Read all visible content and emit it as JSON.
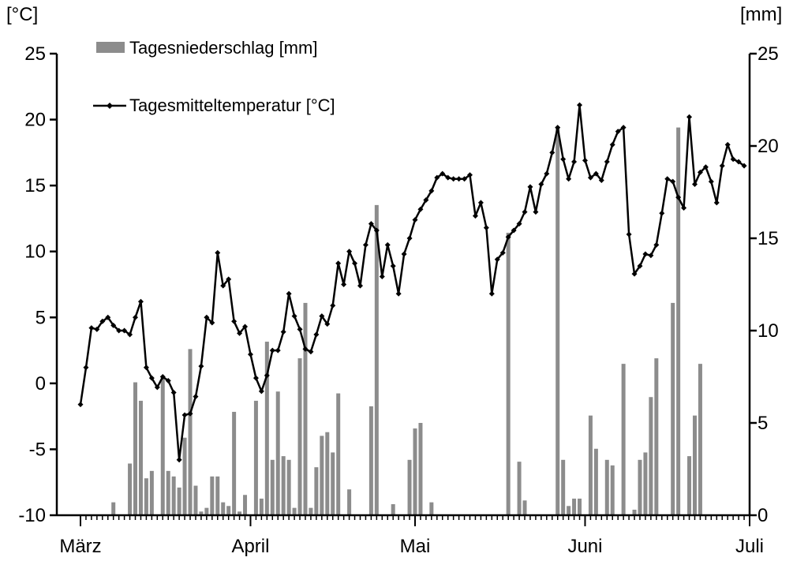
{
  "chart_data": {
    "type": "bar",
    "title": "",
    "left_unit": "[°C]",
    "right_unit": "[mm]",
    "left_ylim": [
      -10,
      25
    ],
    "left_yticks": [
      "25",
      "20",
      "15",
      "10",
      "5",
      "0",
      "-5",
      "-10"
    ],
    "right_ylim": [
      0,
      25
    ],
    "right_yticks": [
      "25",
      "20",
      "15",
      "10",
      "5",
      "0"
    ],
    "x_labels": [
      "März",
      "April",
      "Mai",
      "Juni",
      "Juli"
    ],
    "x_range_days": [
      0,
      122
    ],
    "grid": false,
    "legend_position": "top-left",
    "colors": {
      "precip": "#8c8c8c",
      "temp": "#000000"
    },
    "series": [
      {
        "name": "Tagesniederschlag [mm]",
        "type": "bar",
        "axis": "right",
        "x": [
          6,
          9,
          10,
          11,
          12,
          13,
          15,
          16,
          17,
          18,
          19,
          20,
          21,
          22,
          23,
          24,
          25,
          26,
          27,
          28,
          29,
          30,
          32,
          33,
          34,
          35,
          36,
          37,
          38,
          39,
          40,
          41,
          42,
          43,
          44,
          45,
          46,
          47,
          49,
          53,
          54,
          57,
          60,
          61,
          62,
          64,
          78,
          80,
          81,
          87,
          88,
          89,
          90,
          91,
          93,
          94,
          96,
          97,
          99,
          101,
          102,
          103,
          104,
          105,
          108,
          109,
          111,
          112,
          113
        ],
        "values": [
          0.7,
          2.8,
          7.2,
          6.2,
          2.0,
          2.4,
          7.4,
          2.4,
          2.1,
          1.5,
          4.2,
          9.0,
          1.6,
          0.2,
          0.4,
          2.1,
          2.1,
          0.7,
          0.5,
          5.6,
          0.2,
          1.1,
          6.2,
          0.9,
          9.4,
          3.0,
          6.7,
          3.2,
          3.0,
          0.4,
          8.5,
          11.5,
          0.4,
          2.6,
          4.3,
          4.5,
          3.4,
          6.6,
          1.4,
          5.9,
          16.8,
          0.6,
          3.0,
          4.7,
          5.0,
          0.7,
          15.3,
          2.9,
          0.8,
          21.0,
          3.0,
          0.5,
          0.9,
          0.9,
          5.4,
          3.6,
          3.0,
          2.7,
          8.2,
          0.3,
          3.0,
          3.4,
          6.4,
          8.5,
          11.5,
          21.0,
          3.2,
          5.4,
          8.2
        ]
      },
      {
        "name": "Tagesmitteltemperatur [°C]",
        "type": "line",
        "axis": "left",
        "x": [
          0,
          1,
          2,
          3,
          4,
          5,
          6,
          7,
          8,
          9,
          10,
          11,
          12,
          13,
          14,
          15,
          16,
          17,
          18,
          19,
          20,
          21,
          22,
          23,
          24,
          25,
          26,
          27,
          28,
          29,
          30,
          31,
          32,
          33,
          34,
          35,
          36,
          37,
          38,
          39,
          40,
          41,
          42,
          43,
          44,
          45,
          46,
          47,
          48,
          49,
          50,
          51,
          52,
          53,
          54,
          55,
          56,
          57,
          58,
          59,
          60,
          61,
          62,
          63,
          64,
          65,
          66,
          67,
          68,
          69,
          70,
          71,
          72,
          73,
          74,
          75,
          76,
          77,
          78,
          79,
          80,
          81,
          82,
          83,
          84,
          85,
          86,
          87,
          88,
          89,
          90,
          91,
          92,
          93,
          94,
          95,
          96,
          97,
          98,
          99,
          100,
          101,
          102,
          103,
          104,
          105,
          106,
          107,
          108,
          109,
          110,
          111,
          112,
          113,
          114,
          115,
          116,
          117,
          118,
          119,
          120,
          121
        ],
        "values": [
          -1.6,
          1.2,
          4.2,
          4.1,
          4.7,
          5.0,
          4.4,
          4.0,
          4.0,
          3.7,
          5.0,
          6.2,
          1.2,
          0.4,
          -0.3,
          0.5,
          0.2,
          -0.7,
          -5.8,
          -2.4,
          -2.3,
          -1.0,
          1.3,
          5.0,
          4.6,
          9.9,
          7.4,
          7.9,
          4.7,
          3.8,
          4.3,
          2.2,
          0.4,
          -0.6,
          0.6,
          2.5,
          2.5,
          3.9,
          6.8,
          5.1,
          4.1,
          2.6,
          2.4,
          3.7,
          5.1,
          4.5,
          5.9,
          9.1,
          7.5,
          10.0,
          9.1,
          7.4,
          10.5,
          12.1,
          11.6,
          8.1,
          10.5,
          8.9,
          6.8,
          9.8,
          11.0,
          12.4,
          13.2,
          13.9,
          14.6,
          15.6,
          15.9,
          15.6,
          15.5,
          15.5,
          15.5,
          15.8,
          12.7,
          13.7,
          11.8,
          6.8,
          9.4,
          9.9,
          11.1,
          11.6,
          12.1,
          13.0,
          14.9,
          13.0,
          15.1,
          15.9,
          17.5,
          19.4,
          17.0,
          15.5,
          16.8,
          21.1,
          16.9,
          15.6,
          15.9,
          15.4,
          16.8,
          18.1,
          19.1,
          19.4,
          11.3,
          8.3,
          8.9,
          9.8,
          9.7,
          10.5,
          12.9,
          15.5,
          15.3,
          14.1,
          13.3,
          20.2,
          15.1,
          16.0,
          16.4,
          15.3,
          13.7,
          16.5,
          18.1,
          17.0,
          16.8,
          16.5
        ]
      }
    ]
  }
}
